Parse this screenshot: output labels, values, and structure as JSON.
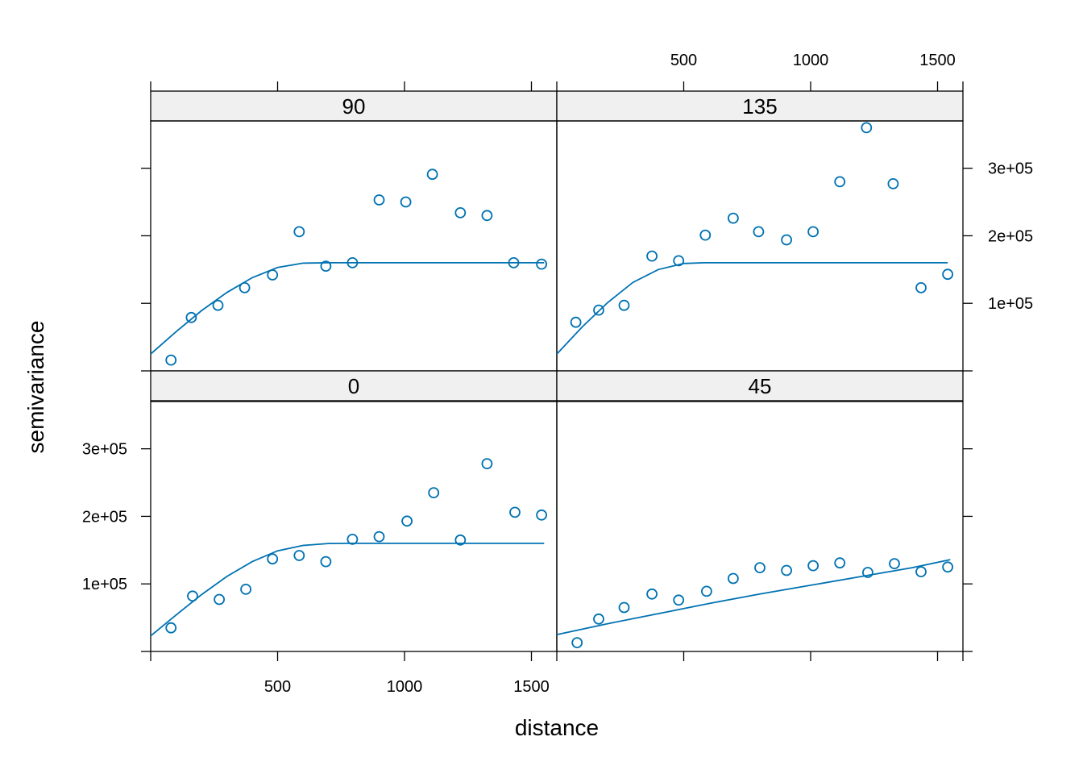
{
  "chart_data": {
    "type": "scatter",
    "xlabel": "distance",
    "ylabel": "semivariance",
    "xlim": [
      0,
      1600
    ],
    "ylim": [
      0,
      370000
    ],
    "x_ticks": [
      500,
      1000,
      1500
    ],
    "x_tick_labels": [
      "500",
      "1000",
      "1500"
    ],
    "y_ticks": [
      100000,
      200000,
      300000
    ],
    "y_tick_labels": [
      "1e+05",
      "2e+05",
      "3e+05"
    ],
    "colors": {
      "series": "#0072B2",
      "strip": "#f0f0f0",
      "axis": "#000000"
    },
    "panels": [
      {
        "label": "90",
        "points": [
          [
            80,
            16000
          ],
          [
            160,
            79000
          ],
          [
            265,
            97000
          ],
          [
            370,
            123000
          ],
          [
            480,
            142000
          ],
          [
            585,
            206000
          ],
          [
            690,
            155000
          ],
          [
            795,
            160000
          ],
          [
            900,
            253000
          ],
          [
            1005,
            250000
          ],
          [
            1110,
            291000
          ],
          [
            1220,
            234000
          ],
          [
            1325,
            230000
          ],
          [
            1430,
            160000
          ],
          [
            1540,
            158000
          ]
        ],
        "fit": [
          [
            0,
            25000
          ],
          [
            100,
            58000
          ],
          [
            200,
            89000
          ],
          [
            300,
            116000
          ],
          [
            400,
            138000
          ],
          [
            500,
            153000
          ],
          [
            600,
            159500
          ],
          [
            700,
            160000
          ],
          [
            800,
            160000
          ],
          [
            900,
            160000
          ],
          [
            1000,
            160000
          ],
          [
            1100,
            160000
          ],
          [
            1200,
            160000
          ],
          [
            1300,
            160000
          ],
          [
            1400,
            160000
          ],
          [
            1550,
            160000
          ]
        ]
      },
      {
        "label": "135",
        "points": [
          [
            75,
            72000
          ],
          [
            165,
            90000
          ],
          [
            265,
            97000
          ],
          [
            375,
            170000
          ],
          [
            480,
            163000
          ],
          [
            585,
            201000
          ],
          [
            695,
            226000
          ],
          [
            795,
            206000
          ],
          [
            905,
            194000
          ],
          [
            1010,
            206000
          ],
          [
            1115,
            280000
          ],
          [
            1220,
            360000
          ],
          [
            1325,
            277000
          ],
          [
            1435,
            123000
          ],
          [
            1540,
            143000
          ]
        ],
        "fit": [
          [
            0,
            25000
          ],
          [
            100,
            65000
          ],
          [
            200,
            101000
          ],
          [
            300,
            131000
          ],
          [
            400,
            150000
          ],
          [
            500,
            159000
          ],
          [
            580,
            160000
          ],
          [
            700,
            160000
          ],
          [
            800,
            160000
          ],
          [
            900,
            160000
          ],
          [
            1000,
            160000
          ],
          [
            1100,
            160000
          ],
          [
            1200,
            160000
          ],
          [
            1300,
            160000
          ],
          [
            1400,
            160000
          ],
          [
            1540,
            160000
          ]
        ]
      },
      {
        "label": "0",
        "points": [
          [
            80,
            35000
          ],
          [
            165,
            82000
          ],
          [
            270,
            77000
          ],
          [
            375,
            92000
          ],
          [
            480,
            137000
          ],
          [
            585,
            142000
          ],
          [
            690,
            133000
          ],
          [
            795,
            166000
          ],
          [
            900,
            170000
          ],
          [
            1010,
            193000
          ],
          [
            1115,
            235000
          ],
          [
            1220,
            165000
          ],
          [
            1325,
            278000
          ],
          [
            1435,
            206000
          ],
          [
            1540,
            202000
          ]
        ],
        "fit": [
          [
            0,
            23000
          ],
          [
            100,
            54000
          ],
          [
            200,
            84000
          ],
          [
            300,
            111000
          ],
          [
            400,
            133000
          ],
          [
            500,
            149000
          ],
          [
            600,
            157000
          ],
          [
            700,
            159800
          ],
          [
            800,
            160000
          ],
          [
            900,
            160000
          ],
          [
            1000,
            160000
          ],
          [
            1100,
            160000
          ],
          [
            1200,
            160000
          ],
          [
            1300,
            160000
          ],
          [
            1400,
            160000
          ],
          [
            1550,
            160000
          ]
        ]
      },
      {
        "label": "45",
        "points": [
          [
            80,
            13000
          ],
          [
            165,
            48000
          ],
          [
            265,
            65000
          ],
          [
            375,
            85000
          ],
          [
            480,
            76000
          ],
          [
            590,
            89000
          ],
          [
            695,
            108000
          ],
          [
            800,
            124000
          ],
          [
            905,
            120000
          ],
          [
            1010,
            127000
          ],
          [
            1115,
            131000
          ],
          [
            1225,
            117000
          ],
          [
            1330,
            130000
          ],
          [
            1435,
            118000
          ],
          [
            1540,
            125000
          ]
        ],
        "fit": [
          [
            0,
            25000
          ],
          [
            200,
            41000
          ],
          [
            400,
            56000
          ],
          [
            600,
            71000
          ],
          [
            800,
            85000
          ],
          [
            1000,
            98000
          ],
          [
            1200,
            111000
          ],
          [
            1400,
            124000
          ],
          [
            1550,
            136000
          ]
        ]
      }
    ]
  }
}
